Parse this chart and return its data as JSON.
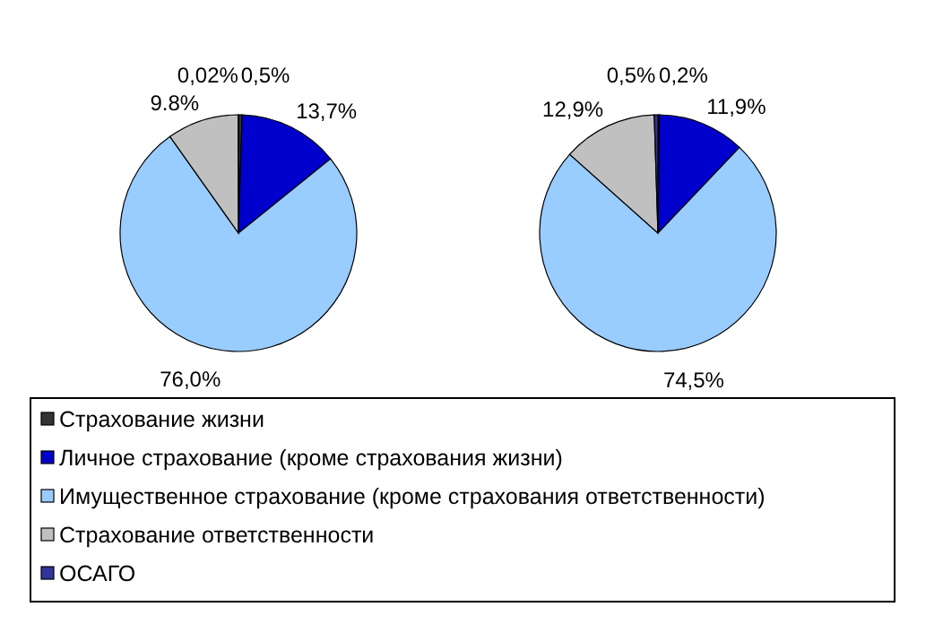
{
  "chart_data": [
    {
      "type": "pie",
      "categories": [
        "Страхование жизни",
        "Личное страхование (кроме страхования жизни)",
        "Имущественное страхование (кроме страхования ответственности)",
        "Страхование ответственности",
        "ОСАГО"
      ],
      "values": [
        0.5,
        13.7,
        76.0,
        9.8,
        0.02
      ],
      "value_labels": [
        "0,5%",
        "13,7%",
        "76,0%",
        "9.8%",
        "0,02%"
      ],
      "colors": [
        "#333333",
        "#0000cc",
        "#99ccff",
        "#c0c0c0",
        "#333399"
      ],
      "legend": "bottom"
    },
    {
      "type": "pie",
      "values": [
        0.2,
        11.9,
        74.5,
        12.9,
        0.5
      ],
      "value_labels": [
        "0,2%",
        "11,9%",
        "74,5%",
        "12,9%",
        "0,5%"
      ],
      "colors": [
        "#333333",
        "#0000cc",
        "#99ccff",
        "#c0c0c0",
        "#333399"
      ],
      "legend": false
    }
  ]
}
